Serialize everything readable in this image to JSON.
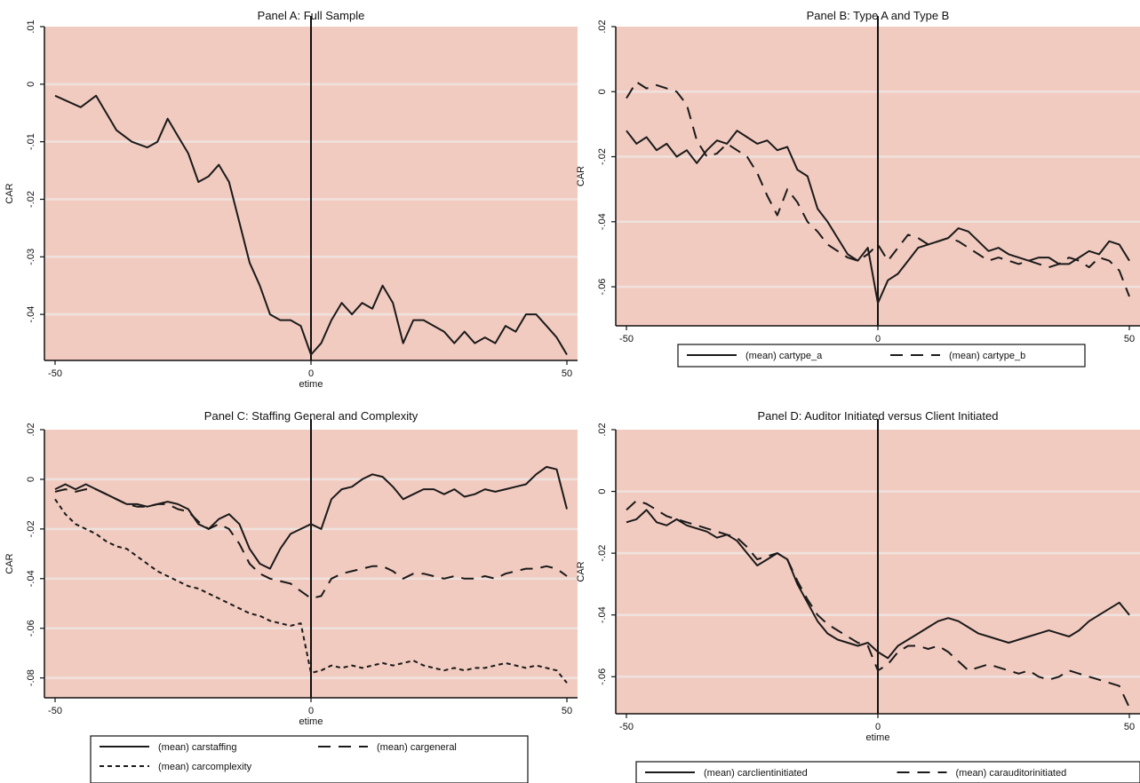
{
  "colors": {
    "plot_background": "#f2cbc0",
    "gridline": "#efe2de",
    "line": "#1a1a1a"
  },
  "chart_data": [
    {
      "type": "line",
      "title": "Panel A: Full Sample",
      "xlabel": "etime",
      "ylabel": "CAR",
      "xlim": [
        -50,
        50
      ],
      "ylim": [
        -0.048,
        0.01
      ],
      "x_ticks": [
        -50,
        0,
        50
      ],
      "x_tick_labels": [
        "-50",
        "0",
        "50"
      ],
      "y_ticks": [
        0.01,
        0,
        -0.01,
        -0.02,
        -0.03,
        -0.04
      ],
      "y_tick_labels": [
        ".01",
        "0",
        "-.01",
        "-.02",
        "-.03",
        "-.04"
      ],
      "grid": true,
      "event_line_x": 0,
      "legend": null,
      "series": [
        {
          "style": "solid",
          "x": [
            -50,
            -45,
            -42,
            -40,
            -38,
            -35,
            -32,
            -30,
            -28,
            -26,
            -24,
            -22,
            -20,
            -18,
            -16,
            -14,
            -12,
            -10,
            -8,
            -6,
            -4,
            -2,
            0,
            2,
            4,
            6,
            8,
            10,
            12,
            14,
            16,
            18,
            20,
            22,
            24,
            26,
            28,
            30,
            32,
            34,
            36,
            38,
            40,
            42,
            44,
            46,
            48,
            50
          ],
          "y": [
            -0.002,
            -0.004,
            -0.002,
            -0.005,
            -0.008,
            -0.01,
            -0.011,
            -0.01,
            -0.006,
            -0.009,
            -0.012,
            -0.017,
            -0.016,
            -0.014,
            -0.017,
            -0.024,
            -0.031,
            -0.035,
            -0.04,
            -0.041,
            -0.041,
            -0.042,
            -0.047,
            -0.045,
            -0.041,
            -0.038,
            -0.04,
            -0.038,
            -0.039,
            -0.035,
            -0.038,
            -0.045,
            -0.041,
            -0.041,
            -0.042,
            -0.043,
            -0.045,
            -0.043,
            -0.045,
            -0.044,
            -0.045,
            -0.042,
            -0.043,
            -0.04,
            -0.04,
            -0.042,
            -0.044,
            -0.047
          ]
        }
      ]
    },
    {
      "type": "line",
      "title": "Panel B: Type A and Type B",
      "xlabel": "etime",
      "ylabel": "CAR",
      "xlim": [
        -50,
        50
      ],
      "ylim": [
        -0.072,
        0.02
      ],
      "x_ticks": [
        -50,
        0,
        50
      ],
      "x_tick_labels": [
        "-50",
        "0",
        "50"
      ],
      "y_ticks": [
        0.02,
        0,
        -0.02,
        -0.04,
        -0.06
      ],
      "y_tick_labels": [
        ".02",
        "0",
        "-.02",
        "-.04",
        "-.06"
      ],
      "grid": true,
      "event_line_x": 0,
      "legend": [
        "(mean) cartype_a",
        "(mean) cartype_b"
      ],
      "series": [
        {
          "name": "(mean) cartype_a",
          "style": "solid",
          "x": [
            -50,
            -48,
            -46,
            -44,
            -42,
            -40,
            -38,
            -36,
            -34,
            -32,
            -30,
            -28,
            -26,
            -24,
            -22,
            -20,
            -18,
            -16,
            -14,
            -12,
            -10,
            -8,
            -6,
            -4,
            -2,
            0,
            2,
            4,
            6,
            8,
            10,
            12,
            14,
            16,
            18,
            20,
            22,
            24,
            26,
            28,
            30,
            32,
            34,
            36,
            38,
            40,
            42,
            44,
            46,
            48,
            50
          ],
          "y": [
            -0.012,
            -0.016,
            -0.014,
            -0.018,
            -0.016,
            -0.02,
            -0.018,
            -0.022,
            -0.018,
            -0.015,
            -0.016,
            -0.012,
            -0.014,
            -0.016,
            -0.015,
            -0.018,
            -0.017,
            -0.024,
            -0.026,
            -0.036,
            -0.04,
            -0.045,
            -0.05,
            -0.052,
            -0.048,
            -0.065,
            -0.058,
            -0.056,
            -0.052,
            -0.048,
            -0.047,
            -0.046,
            -0.045,
            -0.042,
            -0.043,
            -0.046,
            -0.049,
            -0.048,
            -0.05,
            -0.051,
            -0.052,
            -0.051,
            -0.051,
            -0.053,
            -0.053,
            -0.051,
            -0.049,
            -0.05,
            -0.046,
            -0.047,
            -0.052
          ]
        },
        {
          "name": "(mean) cartype_b",
          "style": "dashed",
          "x": [
            -50,
            -48,
            -46,
            -44,
            -42,
            -40,
            -38,
            -36,
            -34,
            -32,
            -30,
            -28,
            -26,
            -24,
            -22,
            -20,
            -18,
            -16,
            -14,
            -12,
            -10,
            -8,
            -6,
            -4,
            -2,
            0,
            2,
            4,
            6,
            8,
            10,
            12,
            14,
            16,
            18,
            20,
            22,
            24,
            26,
            28,
            30,
            32,
            34,
            36,
            38,
            40,
            42,
            44,
            46,
            48,
            50
          ],
          "y": [
            -0.002,
            0.003,
            0.001,
            0.002,
            0.001,
            0.0,
            -0.004,
            -0.015,
            -0.02,
            -0.019,
            -0.016,
            -0.018,
            -0.02,
            -0.025,
            -0.032,
            -0.038,
            -0.03,
            -0.034,
            -0.04,
            -0.043,
            -0.047,
            -0.049,
            -0.051,
            -0.052,
            -0.05,
            -0.047,
            -0.052,
            -0.048,
            -0.044,
            -0.045,
            -0.047,
            -0.046,
            -0.045,
            -0.046,
            -0.048,
            -0.05,
            -0.052,
            -0.051,
            -0.052,
            -0.053,
            -0.052,
            -0.053,
            -0.054,
            -0.053,
            -0.051,
            -0.052,
            -0.054,
            -0.051,
            -0.052,
            -0.055,
            -0.063
          ]
        }
      ]
    },
    {
      "type": "line",
      "title": "Panel C: Staffing General and Complexity",
      "xlabel": "etime",
      "ylabel": "CAR",
      "xlim": [
        -50,
        50
      ],
      "ylim": [
        -0.088,
        0.02
      ],
      "x_ticks": [
        -50,
        0,
        50
      ],
      "x_tick_labels": [
        "-50",
        "0",
        "50"
      ],
      "y_ticks": [
        0.02,
        0,
        -0.02,
        -0.04,
        -0.06,
        -0.08
      ],
      "y_tick_labels": [
        ".02",
        "0",
        "-.02",
        "-.04",
        "-.06",
        "-.08"
      ],
      "grid": true,
      "event_line_x": 0,
      "legend": [
        "(mean) carstaffing",
        "(mean) cargeneral",
        "(mean) carcomplexity"
      ],
      "series": [
        {
          "name": "(mean) carstaffing",
          "style": "solid",
          "x": [
            -50,
            -48,
            -46,
            -44,
            -42,
            -40,
            -38,
            -36,
            -34,
            -32,
            -30,
            -28,
            -26,
            -24,
            -22,
            -20,
            -18,
            -16,
            -14,
            -12,
            -10,
            -8,
            -6,
            -4,
            -2,
            0,
            2,
            4,
            6,
            8,
            10,
            12,
            14,
            16,
            18,
            20,
            22,
            24,
            26,
            28,
            30,
            32,
            34,
            36,
            38,
            40,
            42,
            44,
            46,
            48,
            50
          ],
          "y": [
            -0.004,
            -0.002,
            -0.004,
            -0.002,
            -0.004,
            -0.006,
            -0.008,
            -0.01,
            -0.01,
            -0.011,
            -0.01,
            -0.009,
            -0.01,
            -0.012,
            -0.018,
            -0.02,
            -0.016,
            -0.014,
            -0.018,
            -0.028,
            -0.034,
            -0.036,
            -0.028,
            -0.022,
            -0.02,
            -0.018,
            -0.02,
            -0.008,
            -0.004,
            -0.003,
            0.0,
            0.002,
            0.001,
            -0.003,
            -0.008,
            -0.006,
            -0.004,
            -0.004,
            -0.006,
            -0.004,
            -0.007,
            -0.006,
            -0.004,
            -0.005,
            -0.004,
            -0.003,
            -0.002,
            0.002,
            0.005,
            0.004,
            -0.012
          ]
        },
        {
          "name": "(mean) cargeneral",
          "style": "dashed",
          "x": [
            -50,
            -48,
            -46,
            -44,
            -42,
            -40,
            -38,
            -36,
            -34,
            -32,
            -30,
            -28,
            -26,
            -24,
            -22,
            -20,
            -18,
            -16,
            -14,
            -12,
            -10,
            -8,
            -6,
            -4,
            -2,
            0,
            2,
            4,
            6,
            8,
            10,
            12,
            14,
            16,
            18,
            20,
            22,
            24,
            26,
            28,
            30,
            32,
            34,
            36,
            38,
            40,
            42,
            44,
            46,
            48,
            50
          ],
          "y": [
            -0.005,
            -0.004,
            -0.005,
            -0.004,
            -0.004,
            -0.006,
            -0.008,
            -0.01,
            -0.011,
            -0.011,
            -0.01,
            -0.01,
            -0.012,
            -0.013,
            -0.017,
            -0.02,
            -0.018,
            -0.02,
            -0.026,
            -0.034,
            -0.038,
            -0.04,
            -0.041,
            -0.042,
            -0.045,
            -0.048,
            -0.047,
            -0.04,
            -0.038,
            -0.037,
            -0.036,
            -0.035,
            -0.035,
            -0.037,
            -0.04,
            -0.038,
            -0.038,
            -0.039,
            -0.04,
            -0.039,
            -0.04,
            -0.04,
            -0.039,
            -0.04,
            -0.038,
            -0.037,
            -0.036,
            -0.036,
            -0.035,
            -0.036,
            -0.039
          ]
        },
        {
          "name": "(mean) carcomplexity",
          "style": "dotted",
          "x": [
            -50,
            -48,
            -46,
            -44,
            -42,
            -40,
            -38,
            -36,
            -34,
            -32,
            -30,
            -28,
            -26,
            -24,
            -22,
            -20,
            -18,
            -16,
            -14,
            -12,
            -10,
            -8,
            -6,
            -4,
            -2,
            0,
            2,
            4,
            6,
            8,
            10,
            12,
            14,
            16,
            18,
            20,
            22,
            24,
            26,
            28,
            30,
            32,
            34,
            36,
            38,
            40,
            42,
            44,
            46,
            48,
            50
          ],
          "y": [
            -0.008,
            -0.014,
            -0.018,
            -0.02,
            -0.022,
            -0.025,
            -0.027,
            -0.028,
            -0.031,
            -0.034,
            -0.037,
            -0.039,
            -0.041,
            -0.043,
            -0.044,
            -0.046,
            -0.048,
            -0.05,
            -0.052,
            -0.054,
            -0.055,
            -0.057,
            -0.058,
            -0.059,
            -0.058,
            -0.078,
            -0.077,
            -0.075,
            -0.076,
            -0.075,
            -0.076,
            -0.075,
            -0.074,
            -0.075,
            -0.074,
            -0.073,
            -0.075,
            -0.076,
            -0.077,
            -0.076,
            -0.077,
            -0.076,
            -0.076,
            -0.075,
            -0.074,
            -0.075,
            -0.076,
            -0.075,
            -0.076,
            -0.077,
            -0.082
          ]
        }
      ]
    },
    {
      "type": "line",
      "title": "Panel D: Auditor Initiated versus Client Initiated",
      "xlabel": "etime",
      "ylabel": "CAR",
      "xlim": [
        -50,
        50
      ],
      "ylim": [
        -0.072,
        0.02
      ],
      "x_ticks": [
        -50,
        0,
        50
      ],
      "x_tick_labels": [
        "-50",
        "0",
        "50"
      ],
      "y_ticks": [
        0.02,
        0,
        -0.02,
        -0.04,
        -0.06
      ],
      "y_tick_labels": [
        ".02",
        "0",
        "-.02",
        "-.04",
        "-.06"
      ],
      "grid": true,
      "event_line_x": 0,
      "legend": [
        "(mean) carclientinitiated",
        "(mean) carauditorinitiated"
      ],
      "series": [
        {
          "name": "(mean) carclientinitiated",
          "style": "solid",
          "x": [
            -50,
            -48,
            -46,
            -44,
            -42,
            -40,
            -38,
            -36,
            -34,
            -32,
            -30,
            -28,
            -26,
            -24,
            -22,
            -20,
            -18,
            -16,
            -14,
            -12,
            -10,
            -8,
            -6,
            -4,
            -2,
            0,
            2,
            4,
            6,
            8,
            10,
            12,
            14,
            16,
            18,
            20,
            22,
            24,
            26,
            28,
            30,
            32,
            34,
            36,
            38,
            40,
            42,
            44,
            46,
            48,
            50
          ],
          "y": [
            -0.01,
            -0.009,
            -0.006,
            -0.01,
            -0.011,
            -0.009,
            -0.011,
            -0.012,
            -0.013,
            -0.015,
            -0.014,
            -0.016,
            -0.02,
            -0.024,
            -0.022,
            -0.02,
            -0.022,
            -0.03,
            -0.036,
            -0.042,
            -0.046,
            -0.048,
            -0.049,
            -0.05,
            -0.049,
            -0.052,
            -0.054,
            -0.05,
            -0.048,
            -0.046,
            -0.044,
            -0.042,
            -0.041,
            -0.042,
            -0.044,
            -0.046,
            -0.047,
            -0.048,
            -0.049,
            -0.048,
            -0.047,
            -0.046,
            -0.045,
            -0.046,
            -0.047,
            -0.045,
            -0.042,
            -0.04,
            -0.038,
            -0.036,
            -0.04
          ]
        },
        {
          "name": "(mean) carauditorinitiated",
          "style": "dashed",
          "x": [
            -50,
            -48,
            -46,
            -44,
            -42,
            -40,
            -38,
            -36,
            -34,
            -32,
            -30,
            -28,
            -26,
            -24,
            -22,
            -20,
            -18,
            -16,
            -14,
            -12,
            -10,
            -8,
            -6,
            -4,
            -2,
            0,
            2,
            4,
            6,
            8,
            10,
            12,
            14,
            16,
            18,
            20,
            22,
            24,
            26,
            28,
            30,
            32,
            34,
            36,
            38,
            40,
            42,
            44,
            46,
            48,
            50
          ],
          "y": [
            -0.006,
            -0.003,
            -0.004,
            -0.006,
            -0.008,
            -0.009,
            -0.01,
            -0.011,
            -0.012,
            -0.013,
            -0.014,
            -0.015,
            -0.018,
            -0.022,
            -0.021,
            -0.02,
            -0.022,
            -0.029,
            -0.035,
            -0.04,
            -0.043,
            -0.045,
            -0.047,
            -0.049,
            -0.05,
            -0.058,
            -0.056,
            -0.052,
            -0.05,
            -0.05,
            -0.051,
            -0.05,
            -0.052,
            -0.055,
            -0.058,
            -0.057,
            -0.056,
            -0.057,
            -0.058,
            -0.059,
            -0.058,
            -0.06,
            -0.061,
            -0.06,
            -0.058,
            -0.059,
            -0.06,
            -0.061,
            -0.062,
            -0.063,
            -0.07
          ]
        }
      ]
    }
  ]
}
